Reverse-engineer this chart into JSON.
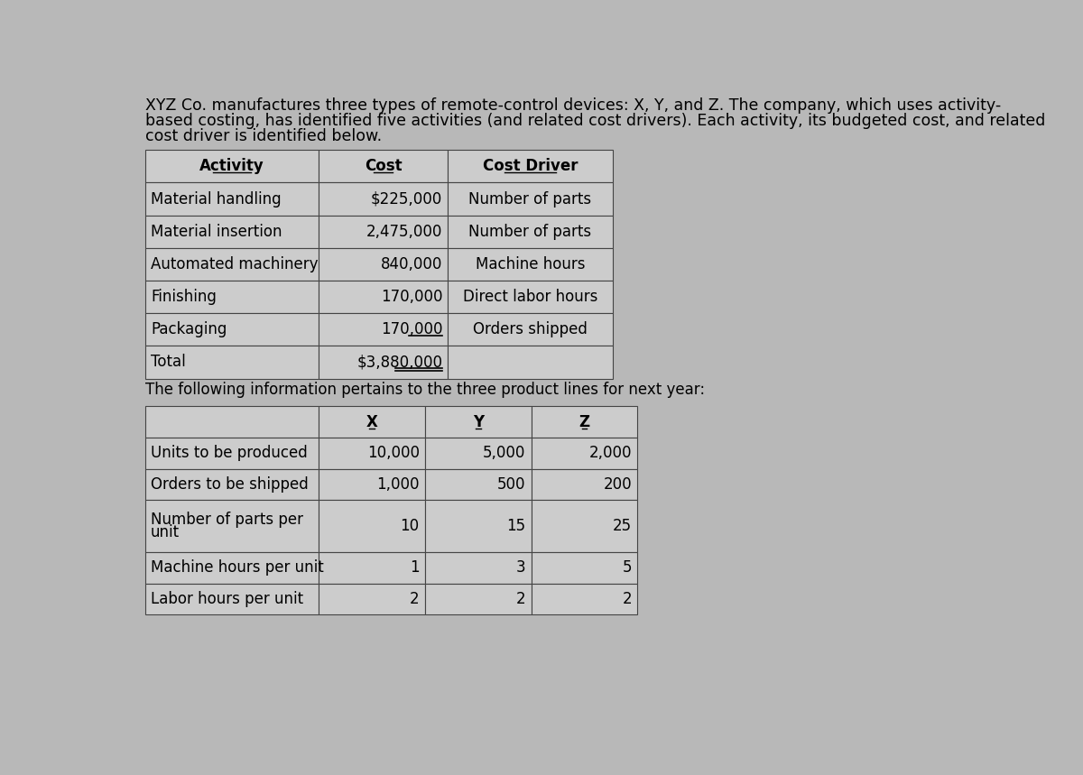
{
  "intro_line1": "XYZ Co. manufactures three types of remote-control devices: X, Y, and Z. The company, which uses activity-",
  "intro_line2": "based costing, has identified five activities (and related cost drivers). Each activity, its budgeted cost, and related",
  "intro_line3": "cost driver is identified below.",
  "table1_headers": [
    "Activity",
    "Cost",
    "Cost Driver"
  ],
  "table1_rows": [
    [
      "Material handling",
      "$225,000",
      "Number of parts"
    ],
    [
      "Material insertion",
      "2,475,000",
      "Number of parts"
    ],
    [
      "Automated machinery",
      "840,000",
      "Machine hours"
    ],
    [
      "Finishing",
      "170,000",
      "Direct labor hours"
    ],
    [
      "Packaging",
      "170,000",
      "Orders shipped"
    ],
    [
      "Total",
      "$3,880,000",
      ""
    ]
  ],
  "middle_text": "The following information pertains to the three product lines for next year:",
  "table2_headers": [
    "",
    "X",
    "Y",
    "Z"
  ],
  "table2_rows": [
    [
      "Units to be produced",
      "10,000",
      "5,000",
      "2,000"
    ],
    [
      "Orders to be shipped",
      "1,000",
      "500",
      "200"
    ],
    [
      "Number of parts per\nunit",
      "10",
      "15",
      "25"
    ],
    [
      "Machine hours per unit",
      "1",
      "3",
      "5"
    ],
    [
      "Labor hours per unit",
      "2",
      "2",
      "2"
    ]
  ],
  "bg_color": "#b8b8b8",
  "cell_bg": "#cccccc",
  "text_color": "#000000",
  "font_size_intro": 12.5,
  "font_size_table": 12,
  "font_size_middle": 12
}
